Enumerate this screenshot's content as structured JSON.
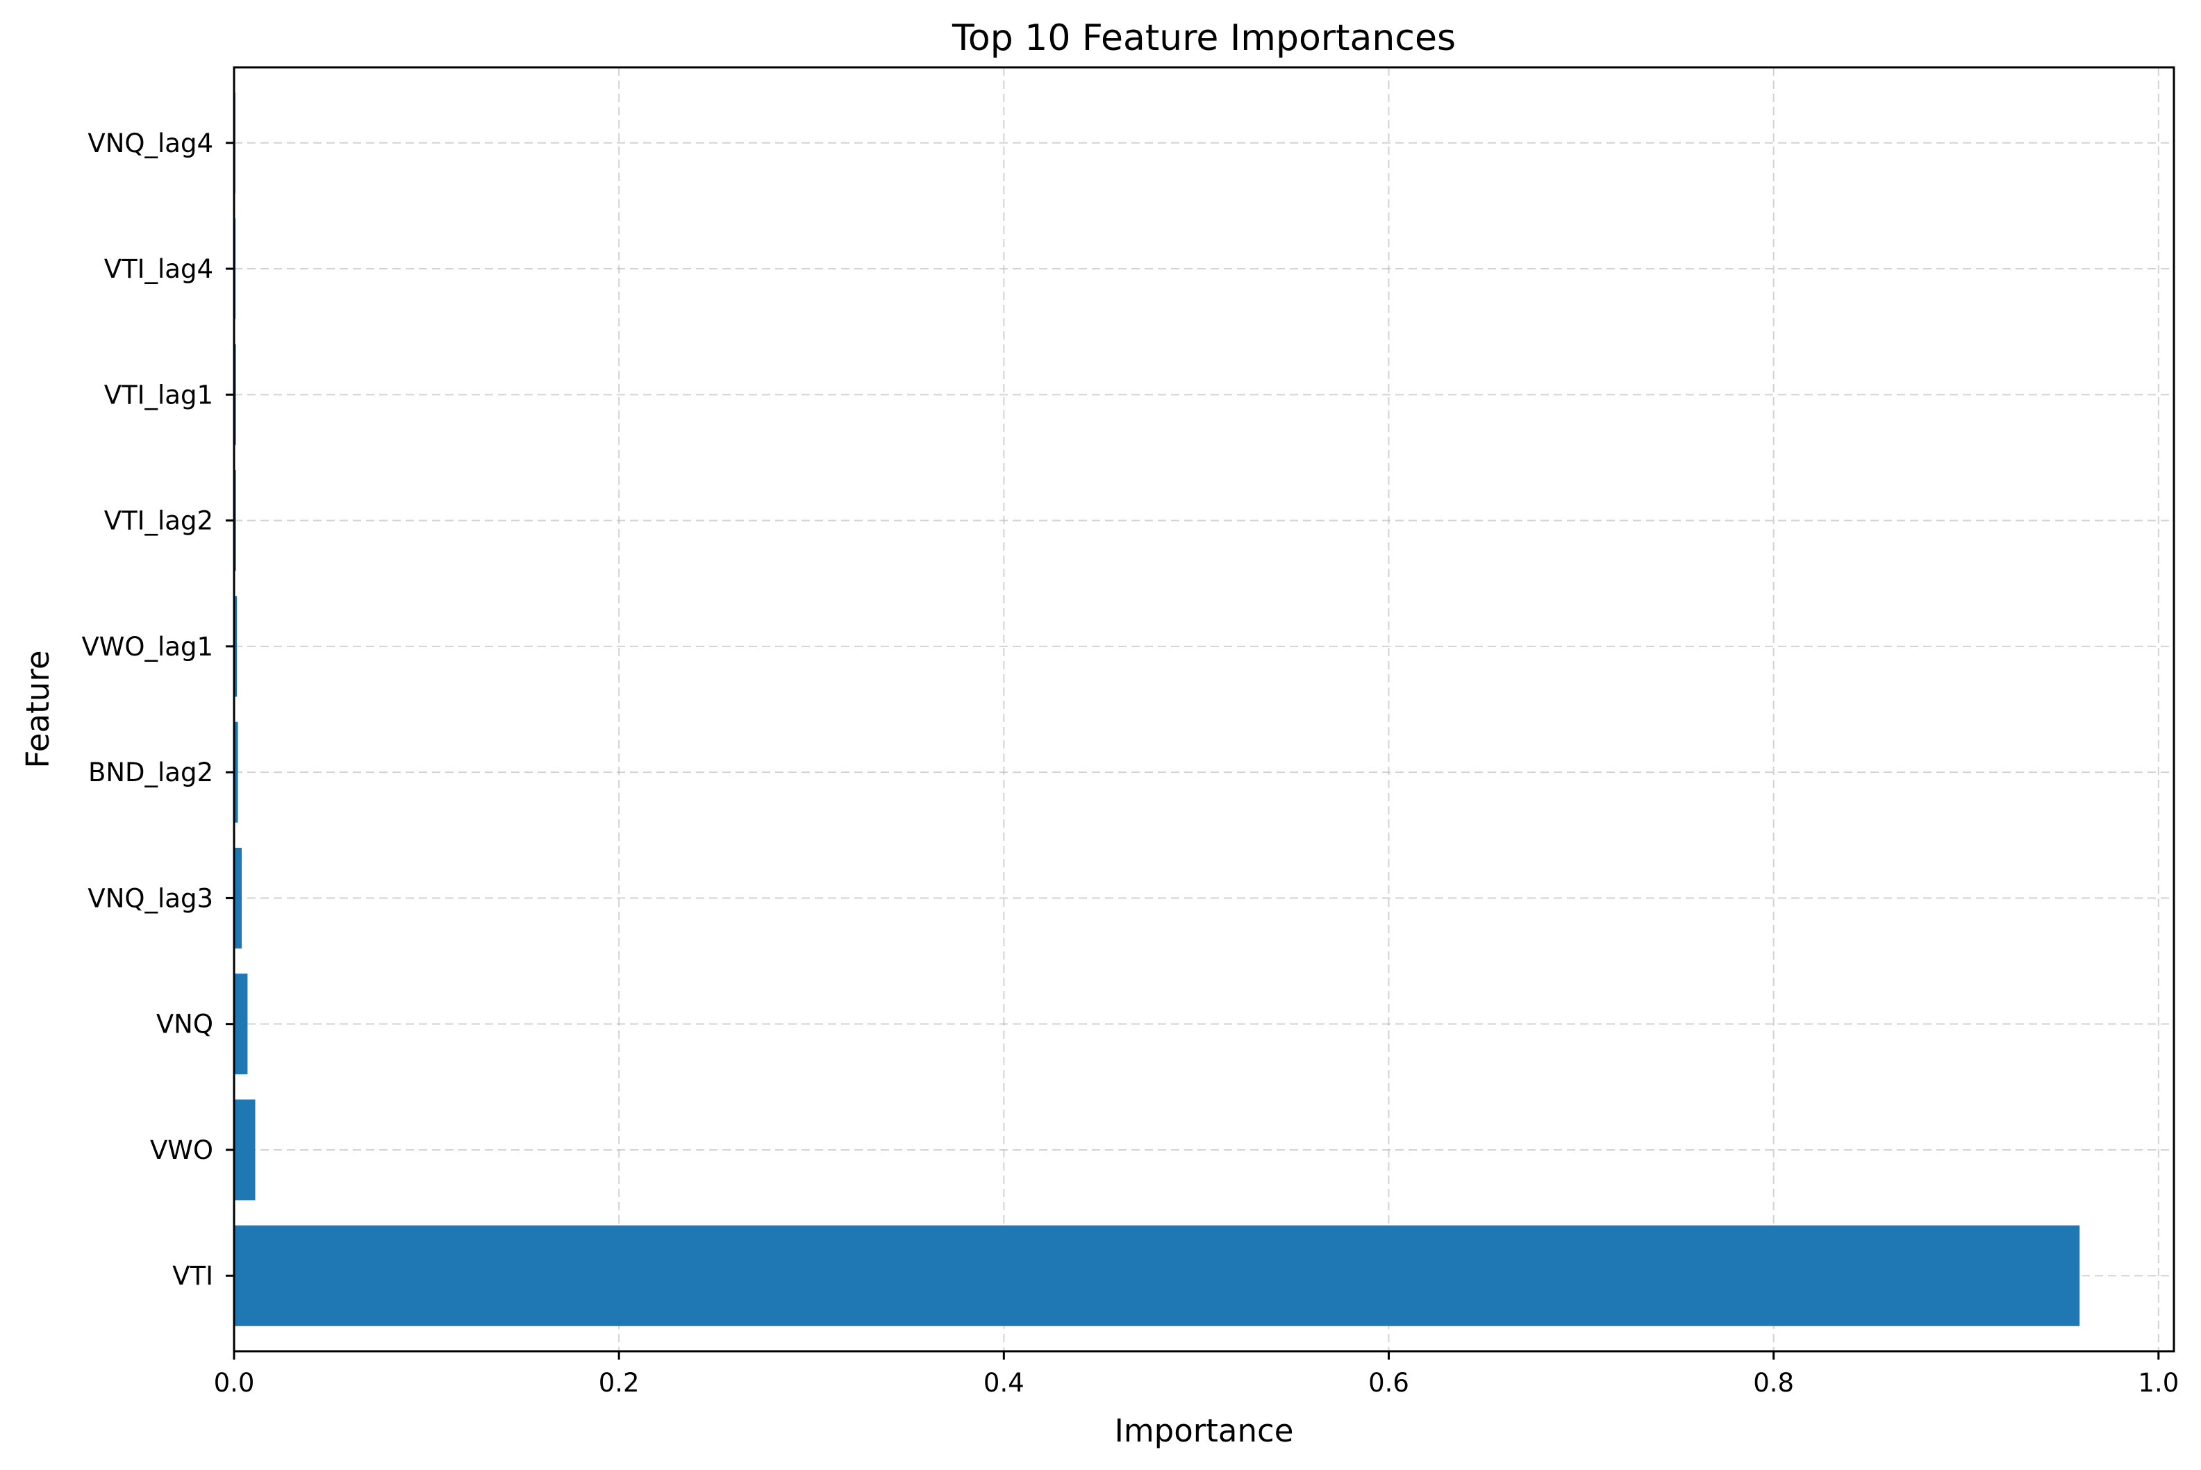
{
  "chart_data": {
    "type": "bar",
    "orientation": "horizontal",
    "title": "Top 10 Feature Importances",
    "xlabel": "Importance",
    "ylabel": "Feature",
    "categories": [
      "VTI",
      "VWO",
      "VNQ",
      "VNQ_lag3",
      "BND_lag2",
      "VWO_lag1",
      "VTI_lag2",
      "VTI_lag1",
      "VTI_lag4",
      "VNQ_lag4"
    ],
    "values": [
      0.959,
      0.011,
      0.007,
      0.004,
      0.002,
      0.0015,
      0.001,
      0.001,
      0.0008,
      0.0007
    ],
    "xlim": [
      0,
      1.008
    ],
    "xticks": [
      0.0,
      0.2,
      0.4,
      0.6,
      0.8,
      1.0
    ],
    "xtick_labels": [
      "0.0",
      "0.2",
      "0.4",
      "0.6",
      "0.8",
      "1.0"
    ],
    "grid": true,
    "bar_color": "#1f77b4"
  }
}
